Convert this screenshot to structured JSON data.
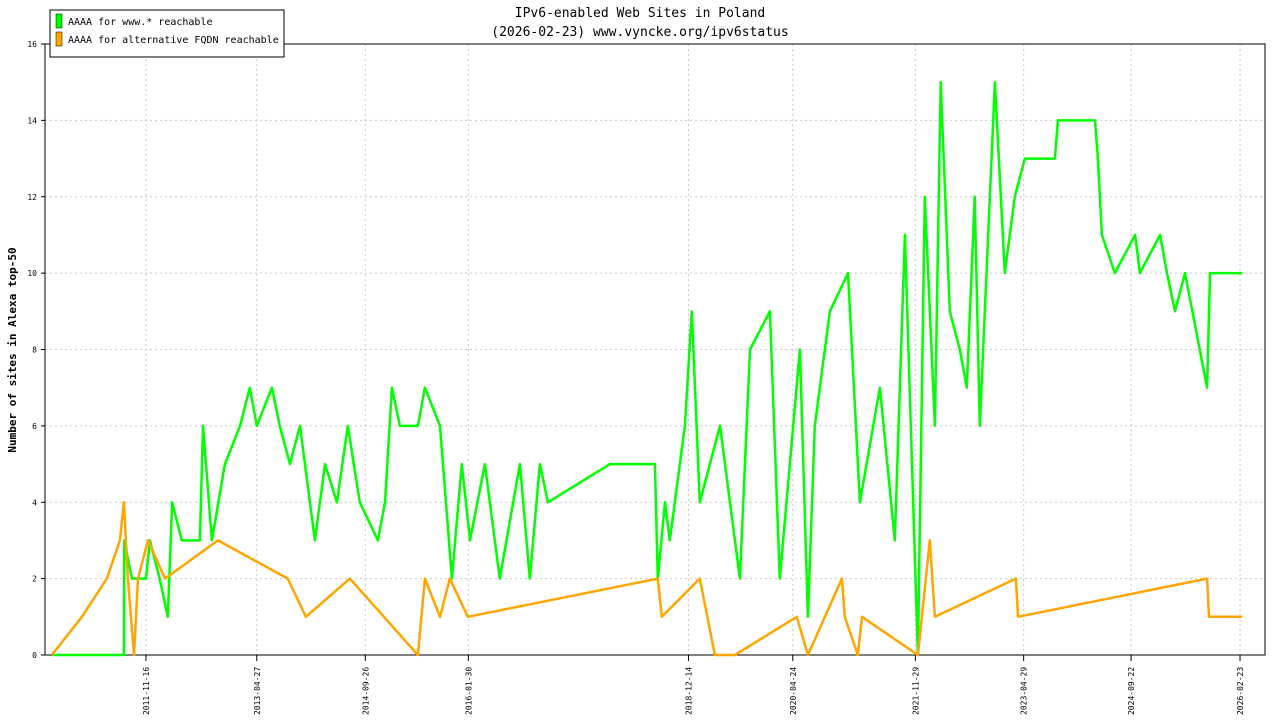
{
  "chart_data": {
    "type": "line",
    "title": "IPv6-enabled Web Sites in Poland",
    "subtitle": "(2026-02-23) www.vyncke.org/ipv6status",
    "ylabel": "Number of sites in Alexa top-50",
    "xlim": [
      "2010-07-23",
      "2026-06-22"
    ],
    "ylim": [
      0,
      16
    ],
    "yticks": [
      0,
      2,
      4,
      6,
      8,
      10,
      12,
      14,
      16
    ],
    "xticks": [
      "2011-11-16",
      "2013-04-27",
      "2014-09-26",
      "2016-01-30",
      "2018-12-14",
      "2020-04-24",
      "2021-11-29",
      "2023-04-29",
      "2024-09-22",
      "2026-02-23"
    ],
    "grid": true,
    "legend": "upper left",
    "series": [
      {
        "name": "AAAA for www.* reachable",
        "color": "#00ff00",
        "x": [
          "2010-08-25",
          "2011-08-03",
          "2011-08-05",
          "2011-09-10",
          "2011-11-16",
          "2011-12-05",
          "2012-01-20",
          "2012-02-28",
          "2012-03-20",
          "2012-05-05",
          "2012-07-30",
          "2012-08-14",
          "2012-09-25",
          "2012-11-26",
          "2013-02-06",
          "2013-03-25",
          "2013-04-27",
          "2013-07-08",
          "2013-08-15",
          "2013-10-02",
          "2013-11-19",
          "2014-01-29",
          "2014-03-18",
          "2014-05-14",
          "2014-07-05",
          "2014-08-31",
          "2014-11-25",
          "2014-12-29",
          "2015-01-31",
          "2015-03-10",
          "2015-06-04",
          "2015-07-07",
          "2015-09-17",
          "2015-11-13",
          "2015-12-30",
          "2016-02-07",
          "2016-04-18",
          "2016-06-28",
          "2016-10-02",
          "2016-11-18",
          "2017-01-05",
          "2017-02-12",
          "2017-12-05",
          "2018-07-07",
          "2018-07-21",
          "2018-08-24",
          "2018-09-16",
          "2018-11-27",
          "2018-12-30",
          "2019-02-06",
          "2019-05-13",
          "2019-08-16",
          "2019-10-03",
          "2020-01-06",
          "2020-02-22",
          "2020-05-28",
          "2020-07-05",
          "2020-08-07",
          "2020-10-18",
          "2021-01-12",
          "2021-03-10",
          "2021-06-13",
          "2021-08-23",
          "2021-10-10",
          "2021-12-11",
          "2022-01-13",
          "2022-03-02",
          "2022-03-30",
          "2022-05-12",
          "2022-06-29",
          "2022-08-01",
          "2022-09-08",
          "2022-10-02",
          "2022-12-13",
          "2023-01-29",
          "2023-03-18",
          "2023-05-05",
          "2023-09-25",
          "2023-10-09",
          "2024-04-03",
          "2024-04-17",
          "2024-05-06",
          "2024-07-07",
          "2024-10-11",
          "2024-11-03",
          "2025-02-07",
          "2025-03-12",
          "2025-04-19",
          "2025-06-06",
          "2025-09-19",
          "2025-10-03",
          "2026-03-05"
        ],
        "values": [
          0,
          0,
          3,
          2,
          2,
          3,
          2,
          1,
          4,
          3,
          3,
          6,
          3,
          5,
          6,
          7,
          6,
          7,
          6,
          5,
          6,
          3,
          5,
          4,
          6,
          4,
          3,
          4,
          7,
          6,
          6,
          7,
          6,
          2,
          5,
          3,
          5,
          2,
          5,
          2,
          5,
          4,
          5,
          5,
          2,
          4,
          3,
          6,
          9,
          4,
          6,
          2,
          8,
          9,
          2,
          8,
          1,
          6,
          9,
          10,
          4,
          7,
          3,
          11,
          0,
          12,
          6,
          15,
          9,
          8,
          7,
          12,
          6,
          15,
          10,
          12,
          13,
          13,
          14,
          14,
          13,
          11,
          10,
          11,
          10,
          11,
          10,
          9,
          10,
          7,
          10,
          10
        ]
      },
      {
        "name": "AAAA for alternative FQDN reachable",
        "color": "#ffa500",
        "x": [
          "2010-08-25",
          "2011-01-15",
          "2011-05-14",
          "2011-07-15",
          "2011-08-03",
          "2011-08-22",
          "2011-09-20",
          "2011-10-09",
          "2011-11-26",
          "2012-02-15",
          "2012-10-24",
          "2013-09-22",
          "2013-12-17",
          "2014-07-15",
          "2015-06-04",
          "2015-07-07",
          "2015-09-17",
          "2015-11-03",
          "2016-01-28",
          "2018-07-21",
          "2018-08-09",
          "2019-02-06",
          "2019-04-19",
          "2019-07-23",
          "2020-05-13",
          "2020-07-05",
          "2020-12-14",
          "2020-12-28",
          "2021-02-28",
          "2021-03-20",
          "2021-12-11",
          "2022-02-06",
          "2022-03-02",
          "2023-03-23",
          "2023-04-02",
          "2025-09-19",
          "2025-09-28",
          "2026-03-05"
        ],
        "values": [
          0,
          1,
          2,
          3,
          4,
          2,
          0,
          2,
          3,
          2,
          3,
          2,
          1,
          2,
          0,
          2,
          1,
          2,
          1,
          2,
          1,
          2,
          0,
          0,
          1,
          0,
          2,
          1,
          0,
          1,
          0,
          3,
          1,
          2,
          1,
          2,
          1,
          1
        ]
      }
    ]
  }
}
